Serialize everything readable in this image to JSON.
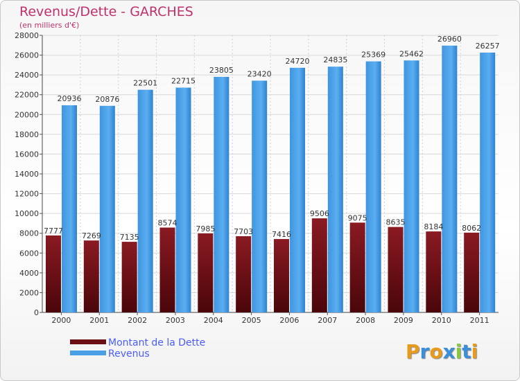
{
  "header": {
    "title": "Revenus/Dette - GARCHES",
    "subtitle": "(en milliers d'€)"
  },
  "chart_data": {
    "type": "bar",
    "title": "Revenus/Dette - GARCHES",
    "subtitle": "(en milliers d'€)",
    "categories": [
      "2000",
      "2001",
      "2002",
      "2003",
      "2004",
      "2005",
      "2006",
      "2007",
      "2008",
      "2009",
      "2010",
      "2011"
    ],
    "series": [
      {
        "name": "Montant de la Dette",
        "color": "#6b0f14",
        "values": [
          7777,
          7269,
          7135,
          8574,
          7985,
          7703,
          7416,
          9506,
          9075,
          8635,
          8184,
          8062
        ]
      },
      {
        "name": "Revenus",
        "color": "#4a9ee6",
        "values": [
          20936,
          20876,
          22501,
          22715,
          23805,
          23420,
          24720,
          24835,
          25369,
          25462,
          26960,
          26257
        ]
      }
    ],
    "ylim": [
      0,
      28000
    ],
    "yticks": [
      "0",
      "2000",
      "4000",
      "6000",
      "8000",
      "10000",
      "12000",
      "14000",
      "16000",
      "18000",
      "20000",
      "22000",
      "24000",
      "26000",
      "28000"
    ],
    "grid": true,
    "legend_position": "bottom-left"
  },
  "legend": {
    "items": [
      {
        "label": "Montant de la Dette",
        "color": "#6b0f14"
      },
      {
        "label": "Revenus",
        "color": "#4a9ee6"
      }
    ]
  },
  "logo": {
    "text": "Proxiti",
    "letters": [
      {
        "ch": "P",
        "color": "#e89a1a"
      },
      {
        "ch": "r",
        "color": "#3a8fd8"
      },
      {
        "ch": "o",
        "color": "#e89a1a"
      },
      {
        "ch": "x",
        "color": "#3a8fd8"
      },
      {
        "ch": "i",
        "color": "#8cc63f"
      },
      {
        "ch": "t",
        "color": "#3a8fd8"
      },
      {
        "ch": "i",
        "color": "#e89a1a"
      }
    ]
  }
}
